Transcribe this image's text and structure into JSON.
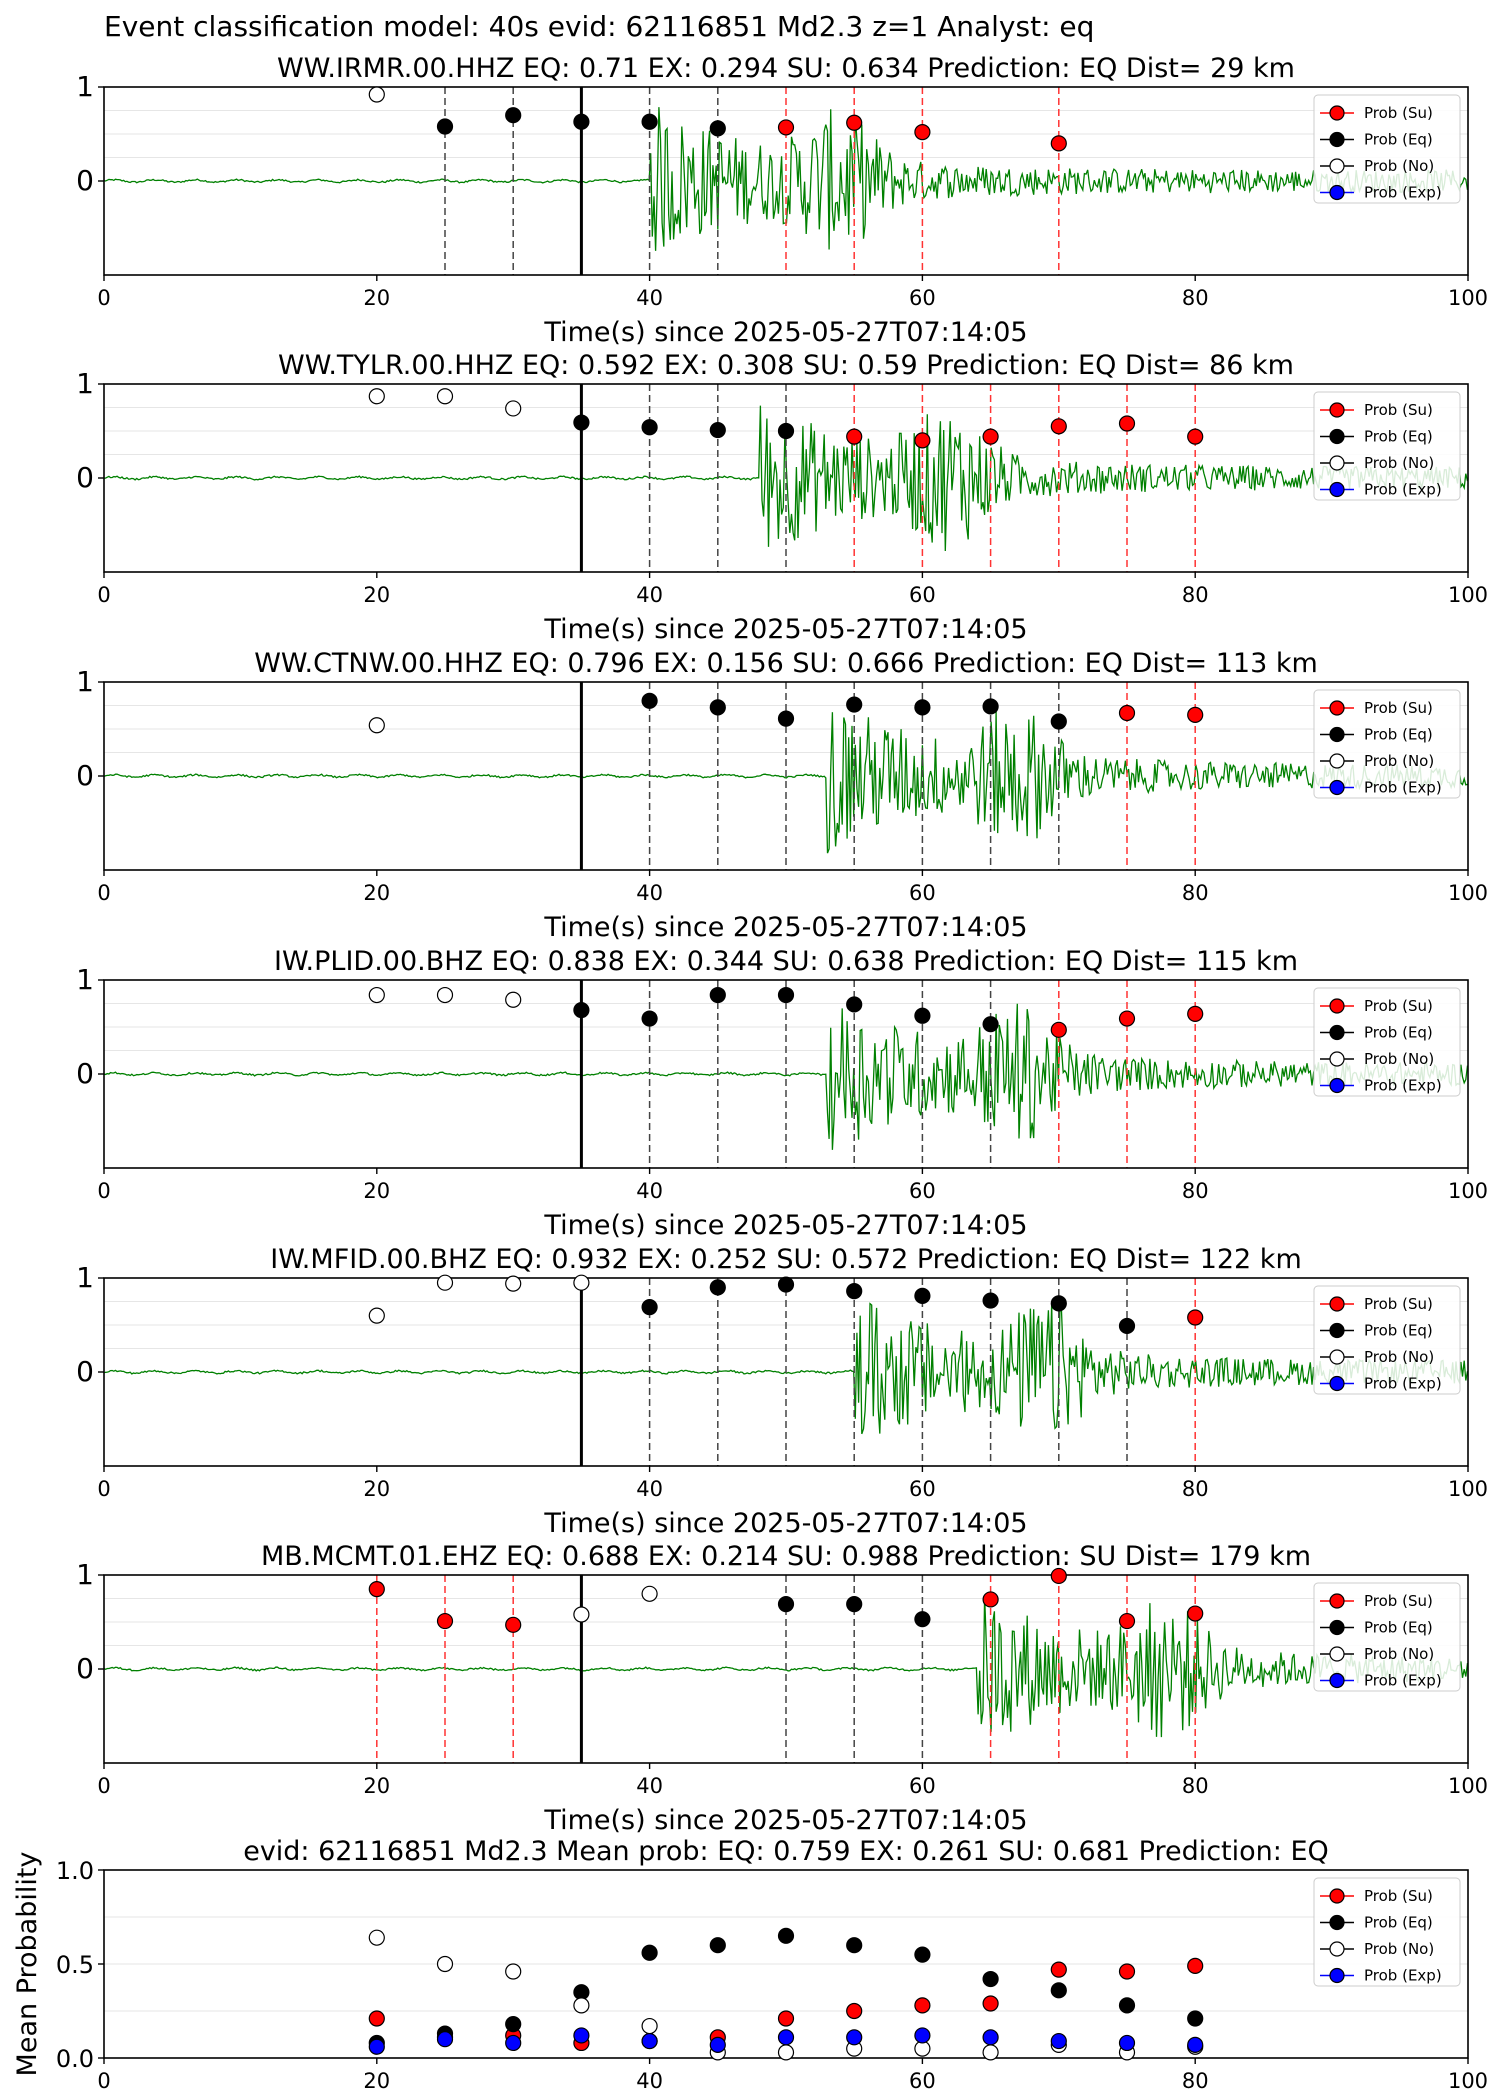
{
  "suptitle": "Event classification model: 40s evid: 62116851 Md2.3 z=1 Analyst: eq",
  "colors": {
    "su": "#ff0000",
    "eq": "#000000",
    "no": "#ffffff",
    "exp": "#0000ff",
    "waveform": "#008000"
  },
  "legend_entries": [
    "Prob (Su)",
    "Prob (Eq)",
    "Prob (No)",
    "Prob (Exp)"
  ],
  "x_tick_labels": [
    "0",
    "20",
    "40",
    "60",
    "80",
    "100"
  ],
  "chart_data": [
    {
      "type": "scatter",
      "title": "WW.IRMR.00.HHZ   EQ: 0.71  EX: 0.294  SU: 0.634   Prediction: EQ    Dist= 29 km",
      "xlabel": "Time(s) since 2025-05-27T07:14:05",
      "ylabel": "",
      "xlim": [
        0,
        100
      ],
      "ylim": [
        -1,
        1
      ],
      "y_tick_labels": [
        "1",
        "0"
      ],
      "legend_position": "top-right",
      "event_line": 35,
      "waveform_onset": 40,
      "vlines": [
        {
          "x": 25,
          "class": "eq"
        },
        {
          "x": 30,
          "class": "eq"
        },
        {
          "x": 40,
          "class": "eq"
        },
        {
          "x": 45,
          "class": "eq"
        },
        {
          "x": 50,
          "class": "su"
        },
        {
          "x": 55,
          "class": "su"
        },
        {
          "x": 60,
          "class": "su"
        },
        {
          "x": 70,
          "class": "su"
        }
      ],
      "series": [
        {
          "name": "Prob (Su)",
          "key": "su",
          "points": [
            [
              50,
              0.57
            ],
            [
              55,
              0.62
            ],
            [
              60,
              0.52
            ],
            [
              70,
              0.4
            ]
          ]
        },
        {
          "name": "Prob (Eq)",
          "key": "eq",
          "points": [
            [
              25,
              0.58
            ],
            [
              30,
              0.7
            ],
            [
              35,
              0.63
            ],
            [
              40,
              0.63
            ],
            [
              45,
              0.56
            ]
          ]
        },
        {
          "name": "Prob (No)",
          "key": "no",
          "points": [
            [
              20,
              0.92
            ]
          ]
        },
        {
          "name": "Prob (Exp)",
          "key": "exp",
          "points": []
        }
      ]
    },
    {
      "type": "scatter",
      "title": "WW.TYLR.00.HHZ   EQ: 0.592  EX: 0.308  SU: 0.59   Prediction: EQ    Dist= 86 km",
      "xlabel": "Time(s) since 2025-05-27T07:14:05",
      "ylabel": "",
      "xlim": [
        0,
        100
      ],
      "ylim": [
        -1,
        1
      ],
      "y_tick_labels": [
        "1",
        "0"
      ],
      "legend_position": "top-right",
      "event_line": 35,
      "waveform_onset": 48,
      "vlines": [
        {
          "x": 40,
          "class": "eq"
        },
        {
          "x": 45,
          "class": "eq"
        },
        {
          "x": 50,
          "class": "eq"
        },
        {
          "x": 55,
          "class": "su"
        },
        {
          "x": 60,
          "class": "su"
        },
        {
          "x": 65,
          "class": "su"
        },
        {
          "x": 70,
          "class": "su"
        },
        {
          "x": 75,
          "class": "su"
        },
        {
          "x": 80,
          "class": "su"
        }
      ],
      "series": [
        {
          "name": "Prob (Su)",
          "key": "su",
          "points": [
            [
              55,
              0.44
            ],
            [
              60,
              0.4
            ],
            [
              65,
              0.44
            ],
            [
              70,
              0.55
            ],
            [
              75,
              0.58
            ],
            [
              80,
              0.44
            ]
          ]
        },
        {
          "name": "Prob (Eq)",
          "key": "eq",
          "points": [
            [
              35,
              0.59
            ],
            [
              40,
              0.54
            ],
            [
              45,
              0.51
            ],
            [
              50,
              0.5
            ]
          ]
        },
        {
          "name": "Prob (No)",
          "key": "no",
          "points": [
            [
              20,
              0.87
            ],
            [
              25,
              0.87
            ],
            [
              30,
              0.74
            ]
          ]
        },
        {
          "name": "Prob (Exp)",
          "key": "exp",
          "points": []
        }
      ]
    },
    {
      "type": "scatter",
      "title": "WW.CTNW.00.HHZ   EQ: 0.796  EX: 0.156  SU: 0.666   Prediction: EQ    Dist= 113 km",
      "xlabel": "Time(s) since 2025-05-27T07:14:05",
      "ylabel": "",
      "xlim": [
        0,
        100
      ],
      "ylim": [
        -1,
        1
      ],
      "y_tick_labels": [
        "1",
        "0"
      ],
      "legend_position": "top-right",
      "event_line": 35,
      "waveform_onset": 53,
      "vlines": [
        {
          "x": 40,
          "class": "eq"
        },
        {
          "x": 45,
          "class": "eq"
        },
        {
          "x": 50,
          "class": "eq"
        },
        {
          "x": 55,
          "class": "eq"
        },
        {
          "x": 60,
          "class": "eq"
        },
        {
          "x": 65,
          "class": "eq"
        },
        {
          "x": 70,
          "class": "eq"
        },
        {
          "x": 75,
          "class": "su"
        },
        {
          "x": 80,
          "class": "su"
        }
      ],
      "series": [
        {
          "name": "Prob (Su)",
          "key": "su",
          "points": [
            [
              75,
              0.67
            ],
            [
              80,
              0.65
            ]
          ]
        },
        {
          "name": "Prob (Eq)",
          "key": "eq",
          "points": [
            [
              40,
              0.8
            ],
            [
              45,
              0.73
            ],
            [
              50,
              0.61
            ],
            [
              55,
              0.76
            ],
            [
              60,
              0.73
            ],
            [
              65,
              0.74
            ],
            [
              70,
              0.58
            ]
          ]
        },
        {
          "name": "Prob (No)",
          "key": "no",
          "points": [
            [
              20,
              0.54
            ]
          ]
        },
        {
          "name": "Prob (Exp)",
          "key": "exp",
          "points": []
        }
      ]
    },
    {
      "type": "scatter",
      "title": "IW.PLID.00.BHZ   EQ: 0.838  EX: 0.344  SU: 0.638   Prediction: EQ    Dist= 115 km",
      "xlabel": "Time(s) since 2025-05-27T07:14:05",
      "ylabel": "",
      "xlim": [
        0,
        100
      ],
      "ylim": [
        -1,
        1
      ],
      "y_tick_labels": [
        "1",
        "0"
      ],
      "legend_position": "top-right",
      "event_line": 35,
      "waveform_onset": 53,
      "vlines": [
        {
          "x": 40,
          "class": "eq"
        },
        {
          "x": 45,
          "class": "eq"
        },
        {
          "x": 50,
          "class": "eq"
        },
        {
          "x": 55,
          "class": "eq"
        },
        {
          "x": 60,
          "class": "eq"
        },
        {
          "x": 65,
          "class": "eq"
        },
        {
          "x": 70,
          "class": "su"
        },
        {
          "x": 75,
          "class": "su"
        },
        {
          "x": 80,
          "class": "su"
        }
      ],
      "series": [
        {
          "name": "Prob (Su)",
          "key": "su",
          "points": [
            [
              70,
              0.47
            ],
            [
              75,
              0.59
            ],
            [
              80,
              0.64
            ]
          ]
        },
        {
          "name": "Prob (Eq)",
          "key": "eq",
          "points": [
            [
              35,
              0.68
            ],
            [
              40,
              0.59
            ],
            [
              45,
              0.84
            ],
            [
              50,
              0.84
            ],
            [
              55,
              0.74
            ],
            [
              60,
              0.62
            ],
            [
              65,
              0.53
            ]
          ]
        },
        {
          "name": "Prob (No)",
          "key": "no",
          "points": [
            [
              20,
              0.84
            ],
            [
              25,
              0.84
            ],
            [
              30,
              0.79
            ]
          ]
        },
        {
          "name": "Prob (Exp)",
          "key": "exp",
          "points": []
        }
      ]
    },
    {
      "type": "scatter",
      "title": "IW.MFID.00.BHZ   EQ: 0.932  EX: 0.252  SU: 0.572   Prediction: EQ    Dist= 122 km",
      "xlabel": "Time(s) since 2025-05-27T07:14:05",
      "ylabel": "",
      "xlim": [
        0,
        100
      ],
      "ylim": [
        -1,
        1
      ],
      "y_tick_labels": [
        "1",
        "0"
      ],
      "legend_position": "top-right",
      "event_line": 35,
      "waveform_onset": 55,
      "vlines": [
        {
          "x": 40,
          "class": "eq"
        },
        {
          "x": 45,
          "class": "eq"
        },
        {
          "x": 50,
          "class": "eq"
        },
        {
          "x": 55,
          "class": "eq"
        },
        {
          "x": 60,
          "class": "eq"
        },
        {
          "x": 65,
          "class": "eq"
        },
        {
          "x": 70,
          "class": "eq"
        },
        {
          "x": 75,
          "class": "eq"
        },
        {
          "x": 80,
          "class": "su"
        }
      ],
      "series": [
        {
          "name": "Prob (Su)",
          "key": "su",
          "points": [
            [
              80,
              0.58
            ]
          ]
        },
        {
          "name": "Prob (Eq)",
          "key": "eq",
          "points": [
            [
              40,
              0.69
            ],
            [
              45,
              0.9
            ],
            [
              50,
              0.93
            ],
            [
              55,
              0.86
            ],
            [
              60,
              0.81
            ],
            [
              65,
              0.76
            ],
            [
              70,
              0.73
            ],
            [
              75,
              0.49
            ]
          ]
        },
        {
          "name": "Prob (No)",
          "key": "no",
          "points": [
            [
              20,
              0.6
            ],
            [
              25,
              0.95
            ],
            [
              30,
              0.94
            ],
            [
              35,
              0.95
            ]
          ]
        },
        {
          "name": "Prob (Exp)",
          "key": "exp",
          "points": []
        }
      ]
    },
    {
      "type": "scatter",
      "title": "MB.MCMT.01.EHZ   EQ: 0.688  EX: 0.214  SU: 0.988   Prediction: SU    Dist= 179 km",
      "xlabel": "Time(s) since 2025-05-27T07:14:05",
      "ylabel": "",
      "xlim": [
        0,
        100
      ],
      "ylim": [
        -1,
        1
      ],
      "y_tick_labels": [
        "1",
        "0"
      ],
      "legend_position": "top-right",
      "event_line": 35,
      "waveform_onset": 64,
      "vlines": [
        {
          "x": 20,
          "class": "su"
        },
        {
          "x": 25,
          "class": "su"
        },
        {
          "x": 30,
          "class": "su"
        },
        {
          "x": 50,
          "class": "eq"
        },
        {
          "x": 55,
          "class": "eq"
        },
        {
          "x": 60,
          "class": "eq"
        },
        {
          "x": 65,
          "class": "su"
        },
        {
          "x": 70,
          "class": "su"
        },
        {
          "x": 75,
          "class": "su"
        },
        {
          "x": 80,
          "class": "su"
        }
      ],
      "series": [
        {
          "name": "Prob (Su)",
          "key": "su",
          "points": [
            [
              20,
              0.85
            ],
            [
              25,
              0.51
            ],
            [
              30,
              0.47
            ],
            [
              65,
              0.74
            ],
            [
              70,
              0.99
            ],
            [
              75,
              0.51
            ],
            [
              80,
              0.59
            ]
          ]
        },
        {
          "name": "Prob (Eq)",
          "key": "eq",
          "points": [
            [
              50,
              0.69
            ],
            [
              55,
              0.69
            ],
            [
              60,
              0.53
            ]
          ]
        },
        {
          "name": "Prob (No)",
          "key": "no",
          "points": [
            [
              35,
              0.58
            ],
            [
              40,
              0.8
            ]
          ]
        },
        {
          "name": "Prob (Exp)",
          "key": "exp",
          "points": []
        }
      ]
    },
    {
      "type": "scatter",
      "title": "evid: 62116851  Md2.3   Mean prob:   EQ: 0.759  EX: 0.261  SU: 0.681   Prediction: EQ",
      "xlabel": "",
      "ylabel": "Mean Probability",
      "xlim": [
        0,
        100
      ],
      "ylim": [
        0,
        1
      ],
      "y_tick_labels": [
        "1.0",
        "0.5",
        "0.0"
      ],
      "legend_position": "top-right",
      "series": [
        {
          "name": "Prob (Su)",
          "key": "su",
          "points": [
            [
              20,
              0.21
            ],
            [
              25,
              0.11
            ],
            [
              30,
              0.12
            ],
            [
              35,
              0.08
            ],
            [
              40,
              0.09
            ],
            [
              45,
              0.11
            ],
            [
              50,
              0.21
            ],
            [
              55,
              0.25
            ],
            [
              60,
              0.28
            ],
            [
              65,
              0.29
            ],
            [
              70,
              0.47
            ],
            [
              75,
              0.46
            ],
            [
              80,
              0.49
            ]
          ]
        },
        {
          "name": "Prob (Eq)",
          "key": "eq",
          "points": [
            [
              20,
              0.08
            ],
            [
              25,
              0.13
            ],
            [
              30,
              0.18
            ],
            [
              35,
              0.35
            ],
            [
              40,
              0.56
            ],
            [
              45,
              0.6
            ],
            [
              50,
              0.65
            ],
            [
              55,
              0.6
            ],
            [
              60,
              0.55
            ],
            [
              65,
              0.42
            ],
            [
              70,
              0.36
            ],
            [
              75,
              0.28
            ],
            [
              80,
              0.21
            ]
          ]
        },
        {
          "name": "Prob (No)",
          "key": "no",
          "points": [
            [
              20,
              0.64
            ],
            [
              25,
              0.5
            ],
            [
              30,
              0.46
            ],
            [
              35,
              0.28
            ],
            [
              40,
              0.17
            ],
            [
              45,
              0.03
            ],
            [
              50,
              0.03
            ],
            [
              55,
              0.05
            ],
            [
              60,
              0.05
            ],
            [
              65,
              0.03
            ],
            [
              70,
              0.07
            ],
            [
              75,
              0.03
            ],
            [
              80,
              0.06
            ]
          ]
        },
        {
          "name": "Prob (Exp)",
          "key": "exp",
          "points": [
            [
              20,
              0.06
            ],
            [
              25,
              0.1
            ],
            [
              30,
              0.08
            ],
            [
              35,
              0.12
            ],
            [
              40,
              0.09
            ],
            [
              45,
              0.07
            ],
            [
              50,
              0.11
            ],
            [
              55,
              0.11
            ],
            [
              60,
              0.12
            ],
            [
              65,
              0.11
            ],
            [
              70,
              0.09
            ],
            [
              75,
              0.08
            ],
            [
              80,
              0.07
            ]
          ]
        }
      ]
    }
  ]
}
